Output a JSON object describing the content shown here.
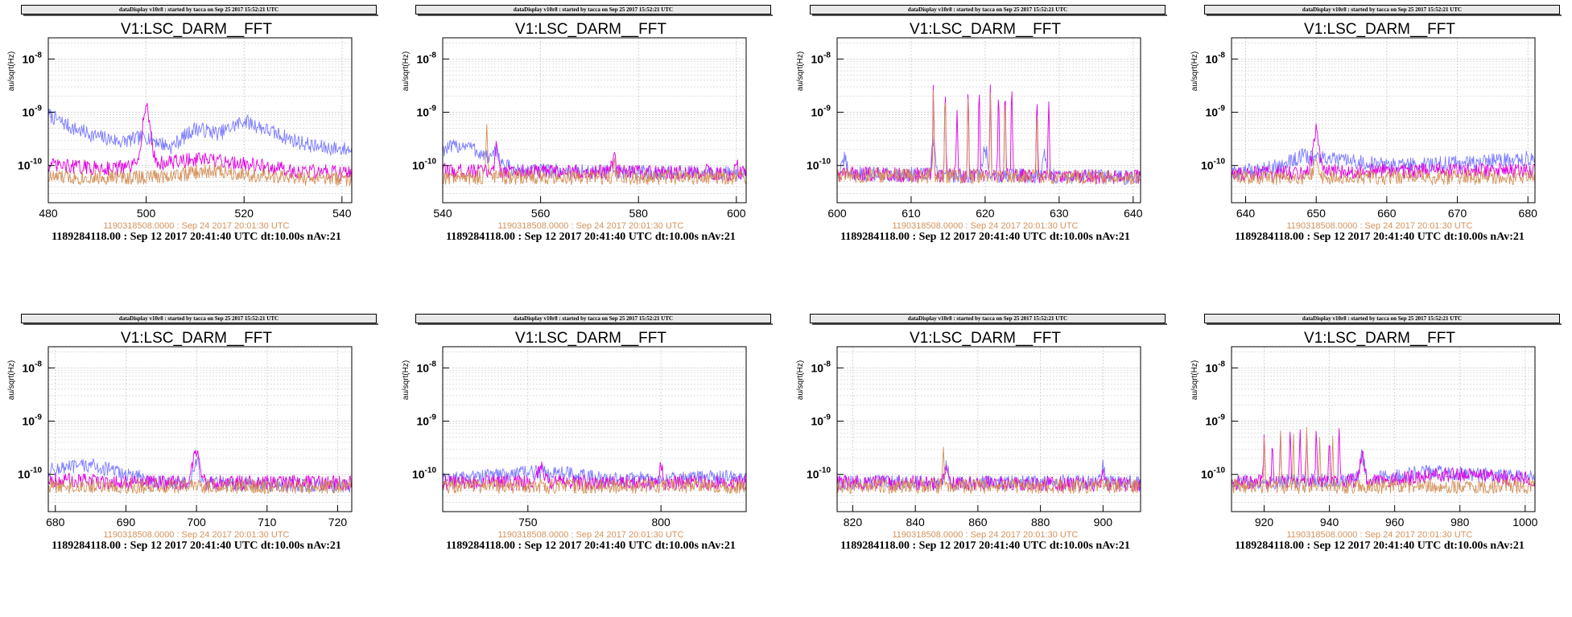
{
  "header": "dataDisplay v10r8 : started by tacca on Sep 25 2017 15:52:21 UTC",
  "plot_title": "V1:LSC_DARM__FFT",
  "ylabel": "au/sqrt(Hz)",
  "reference_line": "1190318508.0000 : Sep 24 2017 20:01:30 UTC",
  "bottom_line": "1189284118.00 : Sep 12 2017 20:41:40 UTC dt:10.00s nAv:21",
  "colors": {
    "blue": "#7b7bff",
    "magenta": "#e000e0",
    "orange": "#d4915a",
    "grid": "#c8c8c8"
  },
  "chart_data": [
    {
      "type": "line",
      "xlim": [
        480,
        542
      ],
      "xticks": [
        480,
        500,
        520,
        540
      ],
      "ylim": [
        2e-11,
        2.5e-08
      ],
      "yscale": "log",
      "yticks": [
        "10^-8",
        "10^-9",
        "10^-10"
      ],
      "title": "V1:LSC_DARM__FFT",
      "series": [
        {
          "color": "blue",
          "base": [
            [
              480,
              9e-10
            ],
            [
              485,
              5e-10
            ],
            [
              490,
              3.5e-10
            ],
            [
              495,
              2.8e-10
            ],
            [
              500,
              3.5e-10
            ],
            [
              505,
              2.2e-10
            ],
            [
              510,
              5e-10
            ],
            [
              515,
              4e-10
            ],
            [
              520,
              7e-10
            ],
            [
              525,
              4.5e-10
            ],
            [
              530,
              3e-10
            ],
            [
              535,
              2.2e-10
            ],
            [
              542,
              2e-10
            ]
          ],
          "peaks": []
        },
        {
          "color": "magenta",
          "base": [
            [
              480,
              1e-10
            ],
            [
              490,
              9e-11
            ],
            [
              495,
              9e-11
            ],
            [
              510,
              1.3e-10
            ],
            [
              520,
              1.1e-10
            ],
            [
              530,
              8e-11
            ],
            [
              542,
              7e-11
            ]
          ],
          "peaks": [
            [
              500,
              1.2e-09,
              1.2
            ]
          ]
        },
        {
          "color": "orange",
          "base": [
            [
              480,
              6e-11
            ],
            [
              500,
              6e-11
            ],
            [
              515,
              8e-11
            ],
            [
              525,
              6e-11
            ],
            [
              542,
              5.5e-11
            ]
          ],
          "peaks": []
        }
      ]
    },
    {
      "type": "line",
      "xlim": [
        540,
        602
      ],
      "xticks": [
        540,
        560,
        580,
        600
      ],
      "ylim": [
        2e-11,
        2.5e-08
      ],
      "yscale": "log",
      "yticks": [
        "10^-8",
        "10^-9",
        "10^-10"
      ],
      "title": "V1:LSC_DARM__FFT",
      "series": [
        {
          "color": "blue",
          "base": [
            [
              540,
              2e-10
            ],
            [
              545,
              2.5e-10
            ],
            [
              548,
              1.6e-10
            ],
            [
              555,
              8e-11
            ],
            [
              602,
              7e-11
            ]
          ],
          "peaks": [
            [
              551,
              2e-10,
              0.6
            ]
          ]
        },
        {
          "color": "magenta",
          "base": [
            [
              540,
              8e-11
            ],
            [
              602,
              7e-11
            ]
          ],
          "peaks": [
            [
              551,
              3e-10,
              0.4
            ],
            [
              575,
              1.6e-10,
              0.5
            ],
            [
              594,
              1.3e-10,
              0.4
            ],
            [
              600,
              1.3e-10,
              0.4
            ]
          ]
        },
        {
          "color": "orange",
          "base": [
            [
              540,
              6e-11
            ],
            [
              602,
              6e-11
            ]
          ],
          "peaks": [
            [
              549,
              6e-10,
              0.25
            ],
            [
              575,
              1.2e-10,
              0.3
            ]
          ]
        }
      ]
    },
    {
      "type": "line",
      "xlim": [
        600,
        641
      ],
      "xticks": [
        600,
        610,
        620,
        630,
        640
      ],
      "ylim": [
        2e-11,
        2.5e-08
      ],
      "yscale": "log",
      "yticks": [
        "10^-8",
        "10^-9",
        "10^-10"
      ],
      "title": "V1:LSC_DARM__FFT",
      "series": [
        {
          "color": "blue",
          "base": [
            [
              600,
              7e-11
            ],
            [
              641,
              6e-11
            ]
          ],
          "peaks": [
            [
              601,
              1.3e-10,
              0.4
            ],
            [
              613,
              3e-10,
              0.3
            ],
            [
              620,
              2e-10,
              0.5
            ],
            [
              628,
              1.6e-10,
              0.3
            ]
          ]
        },
        {
          "color": "magenta",
          "base": [
            [
              600,
              7e-11
            ],
            [
              641,
              6e-11
            ]
          ],
          "peaks": [
            [
              613,
              2.5e-09,
              0.12
            ],
            [
              614.6,
              2.8e-09,
              0.12
            ],
            [
              616.2,
              1.2e-09,
              0.12
            ],
            [
              617.7,
              2e-09,
              0.12
            ],
            [
              619.2,
              2.5e-09,
              0.12
            ],
            [
              620.7,
              3e-09,
              0.12
            ],
            [
              621.8,
              2.5e-09,
              0.12
            ],
            [
              622.7,
              3e-09,
              0.12
            ],
            [
              623.6,
              3.6e-09,
              0.12
            ],
            [
              627,
              1.6e-09,
              0.12
            ],
            [
              628.6,
              1.8e-09,
              0.12
            ]
          ]
        },
        {
          "color": "orange",
          "base": [
            [
              600,
              6.5e-11
            ],
            [
              641,
              6e-11
            ]
          ],
          "peaks": [
            [
              613,
              2.2e-09,
              0.1
            ],
            [
              614.6,
              2.5e-09,
              0.1
            ],
            [
              617.7,
              1.8e-09,
              0.1
            ],
            [
              620.7,
              2.7e-09,
              0.1
            ],
            [
              622.7,
              2.8e-09,
              0.1
            ],
            [
              627,
              1.4e-09,
              0.1
            ]
          ]
        }
      ]
    },
    {
      "type": "line",
      "xlim": [
        638,
        681
      ],
      "xticks": [
        640,
        650,
        660,
        670,
        680
      ],
      "ylim": [
        2e-11,
        2.5e-08
      ],
      "yscale": "log",
      "yticks": [
        "10^-8",
        "10^-9",
        "10^-10"
      ],
      "title": "V1:LSC_DARM__FFT",
      "series": [
        {
          "color": "blue",
          "base": [
            [
              638,
              7e-11
            ],
            [
              645,
              1e-10
            ],
            [
              648,
              1.5e-10
            ],
            [
              660,
              1e-10
            ],
            [
              670,
              1.1e-10
            ],
            [
              681,
              1.4e-10
            ]
          ],
          "peaks": []
        },
        {
          "color": "magenta",
          "base": [
            [
              638,
              7e-11
            ],
            [
              660,
              8e-11
            ],
            [
              681,
              8e-11
            ]
          ],
          "peaks": [
            [
              650,
              4.5e-10,
              0.6
            ]
          ]
        },
        {
          "color": "orange",
          "base": [
            [
              638,
              6e-11
            ],
            [
              681,
              6e-11
            ]
          ],
          "peaks": [
            [
              650,
              1.2e-10,
              0.5
            ]
          ]
        }
      ]
    },
    {
      "type": "line",
      "xlim": [
        679,
        722
      ],
      "xticks": [
        680,
        690,
        700,
        710,
        720
      ],
      "ylim": [
        2e-11,
        2.5e-08
      ],
      "yscale": "log",
      "yticks": [
        "10^-8",
        "10^-9",
        "10^-10"
      ],
      "title": "V1:LSC_DARM__FFT",
      "series": [
        {
          "color": "blue",
          "base": [
            [
              679,
              1.2e-10
            ],
            [
              685,
              1.5e-10
            ],
            [
              690,
              1e-10
            ],
            [
              695,
              7e-11
            ],
            [
              722,
              6e-11
            ]
          ],
          "peaks": [
            [
              700,
              1.8e-10,
              0.5
            ]
          ]
        },
        {
          "color": "magenta",
          "base": [
            [
              679,
              8e-11
            ],
            [
              690,
              7e-11
            ],
            [
              722,
              7e-11
            ]
          ],
          "peaks": [
            [
              700,
              2.6e-10,
              0.7
            ]
          ]
        },
        {
          "color": "orange",
          "base": [
            [
              679,
              6e-11
            ],
            [
              722,
              6e-11
            ]
          ],
          "peaks": []
        }
      ]
    },
    {
      "type": "line",
      "xlim": [
        718,
        832
      ],
      "xticks": [
        750,
        800
      ],
      "ylim": [
        2e-11,
        2.5e-08
      ],
      "yscale": "log",
      "yticks": [
        "10^-8",
        "10^-9",
        "10^-10"
      ],
      "title": "V1:LSC_DARM__FFT",
      "series": [
        {
          "color": "blue",
          "base": [
            [
              718,
              8e-11
            ],
            [
              750,
              1.1e-10
            ],
            [
              760,
              1.1e-10
            ],
            [
              780,
              8e-11
            ],
            [
              832,
              9e-11
            ]
          ],
          "peaks": []
        },
        {
          "color": "magenta",
          "base": [
            [
              718,
              7e-11
            ],
            [
              832,
              7e-11
            ]
          ],
          "peaks": [
            [
              755,
              1.5e-10,
              1.5
            ],
            [
              800,
              1.7e-10,
              0.7
            ]
          ]
        },
        {
          "color": "orange",
          "base": [
            [
              718,
              6e-11
            ],
            [
              832,
              6e-11
            ]
          ],
          "peaks": []
        }
      ]
    },
    {
      "type": "line",
      "xlim": [
        815,
        912
      ],
      "xticks": [
        820,
        840,
        860,
        880,
        900
      ],
      "ylim": [
        2e-11,
        2.5e-08
      ],
      "yscale": "log",
      "yticks": [
        "10^-8",
        "10^-9",
        "10^-10"
      ],
      "title": "V1:LSC_DARM__FFT",
      "series": [
        {
          "color": "blue",
          "base": [
            [
              815,
              7e-11
            ],
            [
              912,
              7e-11
            ]
          ],
          "peaks": [
            [
              850,
              1.4e-10,
              1
            ],
            [
              900,
              1.5e-10,
              0.6
            ]
          ]
        },
        {
          "color": "magenta",
          "base": [
            [
              815,
              7e-11
            ],
            [
              912,
              6.5e-11
            ]
          ],
          "peaks": [
            [
              850,
              1.2e-10,
              1
            ],
            [
              900,
              1.3e-10,
              0.6
            ]
          ]
        },
        {
          "color": "orange",
          "base": [
            [
              815,
              6e-11
            ],
            [
              912,
              6e-11
            ]
          ],
          "peaks": [
            [
              849,
              3.8e-10,
              0.35
            ]
          ]
        }
      ]
    },
    {
      "type": "line",
      "xlim": [
        910,
        1003
      ],
      "xticks": [
        920,
        940,
        960,
        980,
        1000
      ],
      "ylim": [
        2e-11,
        2.5e-08
      ],
      "yscale": "log",
      "yticks": [
        "10^-8",
        "10^-9",
        "10^-10"
      ],
      "title": "V1:LSC_DARM__FFT",
      "series": [
        {
          "color": "blue",
          "base": [
            [
              910,
              7e-11
            ],
            [
              950,
              8e-11
            ],
            [
              970,
              1.1e-10
            ],
            [
              1003,
              9e-11
            ]
          ],
          "peaks": [
            [
              950,
              2.2e-10,
              1
            ]
          ]
        },
        {
          "color": "magenta",
          "base": [
            [
              910,
              7e-11
            ],
            [
              960,
              8e-11
            ],
            [
              975,
              1e-10
            ],
            [
              1003,
              8e-11
            ]
          ],
          "peaks": [
            [
              920,
              5.5e-10,
              0.3
            ],
            [
              922.5,
              5e-10,
              0.3
            ],
            [
              925,
              5.5e-10,
              0.3
            ],
            [
              928,
              6e-10,
              0.3
            ],
            [
              931,
              6.5e-10,
              0.3
            ],
            [
              933,
              6e-10,
              0.3
            ],
            [
              936,
              6.5e-10,
              0.3
            ],
            [
              940,
              6e-10,
              0.3
            ],
            [
              943,
              6.5e-10,
              0.3
            ],
            [
              950,
              2.5e-10,
              0.9
            ]
          ]
        },
        {
          "color": "orange",
          "base": [
            [
              910,
              6e-11
            ],
            [
              1003,
              6e-11
            ]
          ],
          "peaks": [
            [
              920,
              5e-10,
              0.25
            ],
            [
              925,
              5.5e-10,
              0.25
            ],
            [
              929,
              5.5e-10,
              0.25
            ],
            [
              933,
              6e-10,
              0.25
            ],
            [
              937,
              5.5e-10,
              0.25
            ],
            [
              941,
              6e-10,
              0.25
            ]
          ]
        }
      ]
    }
  ]
}
